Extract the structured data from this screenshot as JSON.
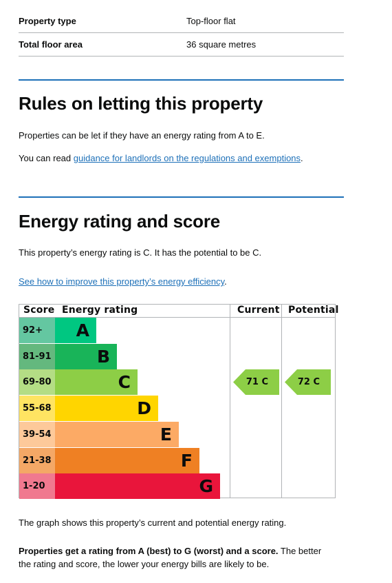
{
  "summary": [
    {
      "key": "Property type",
      "value": "Top-floor flat"
    },
    {
      "key": "Total floor area",
      "value": "36 square metres"
    }
  ],
  "letting": {
    "heading": "Rules on letting this property",
    "intro": "Properties can be let if they have an energy rating from A to E.",
    "guidance_prefix": "You can read ",
    "guidance_link": "guidance for landlords on the regulations and exemptions",
    "guidance_suffix": "."
  },
  "rating": {
    "heading": "Energy rating and score",
    "summary": "This property’s energy rating is C. It has the potential to be C.",
    "improve_link": "See how to improve this property’s energy efficiency",
    "improve_suffix": "."
  },
  "chart_data": {
    "type": "table",
    "headers": {
      "score": "Score",
      "rating": "Energy rating",
      "current": "Current",
      "potential": "Potential"
    },
    "bands": [
      {
        "letter": "A",
        "range": "92+",
        "color": "#00c781",
        "score_bg": "#64c7a1"
      },
      {
        "letter": "B",
        "range": "81-91",
        "color": "#19b459",
        "score_bg": "#64b87e"
      },
      {
        "letter": "C",
        "range": "69-80",
        "color": "#8dce46",
        "score_bg": "#b4dd85"
      },
      {
        "letter": "D",
        "range": "55-68",
        "color": "#ffd500",
        "score_bg": "#ffe462"
      },
      {
        "letter": "E",
        "range": "39-54",
        "color": "#fcaa65",
        "score_bg": "#fdc99a"
      },
      {
        "letter": "F",
        "range": "21-38",
        "color": "#ef8023",
        "score_bg": "#f4a866"
      },
      {
        "letter": "G",
        "range": "1-20",
        "color": "#e9153b",
        "score_bg": "#f0798f"
      }
    ],
    "current": {
      "score": 71,
      "band": "C",
      "label": "71 C",
      "color": "#8dce46"
    },
    "potential": {
      "score": 72,
      "band": "C",
      "label": "72 C",
      "color": "#8dce46"
    }
  },
  "footer": {
    "graph_note": "The graph shows this property’s current and potential energy rating.",
    "bold_line": "Properties get a rating from A (best) to G (worst) and a score.",
    "rest_line1": " The better",
    "rest_line2": "the rating and score, the lower your energy bills are likely to be."
  }
}
